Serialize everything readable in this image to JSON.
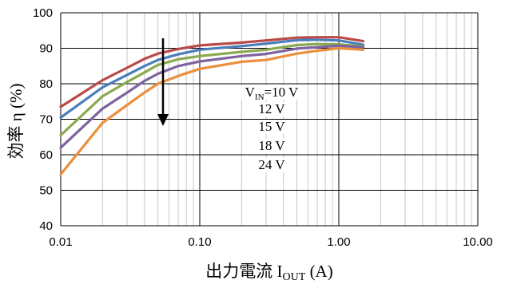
{
  "chart_data": {
    "type": "line",
    "xlabel": "出力電流 I",
    "xlabel_sub": "OUT",
    "xlabel_unit": " (A)",
    "ylabel": "効率 η (%)",
    "xscale": "log",
    "xlim": [
      0.01,
      10
    ],
    "ylim": [
      40,
      100
    ],
    "x_ticks": [
      "0.01",
      "0.10",
      "1.00",
      "10.00"
    ],
    "y_ticks": [
      "40",
      "50",
      "60",
      "70",
      "80",
      "90",
      "100"
    ],
    "grid": true,
    "annotation": "arrow pointing down from the top series to the bottom series",
    "series": [
      {
        "name": "=10 V",
        "label_prefix": "V",
        "label_sub": "IN",
        "color": "#b94a48",
        "x": [
          0.01,
          0.02,
          0.03,
          0.04,
          0.05,
          0.07,
          0.1,
          0.2,
          0.3,
          0.5,
          0.7,
          1.0,
          1.5
        ],
        "y": [
          73.5,
          81,
          84.5,
          87,
          88.5,
          89.8,
          90.8,
          91.6,
          92.2,
          93.0,
          93.1,
          93.1,
          92.0
        ]
      },
      {
        "name": "12 V",
        "label_prefix": "",
        "label_sub": "",
        "color": "#4a7ebb",
        "x": [
          0.01,
          0.02,
          0.03,
          0.04,
          0.05,
          0.07,
          0.1,
          0.2,
          0.3,
          0.5,
          0.7,
          1.0,
          1.5
        ],
        "y": [
          70.5,
          79,
          82.5,
          85,
          86.7,
          88.3,
          89.6,
          90.6,
          91.3,
          92.3,
          92.4,
          92.2,
          91.0
        ]
      },
      {
        "name": "15 V",
        "label_prefix": "",
        "label_sub": "",
        "color": "#8aaa4f",
        "x": [
          0.01,
          0.02,
          0.03,
          0.04,
          0.05,
          0.07,
          0.1,
          0.2,
          0.3,
          0.5,
          0.7,
          1.0,
          1.5
        ],
        "y": [
          65.5,
          76.5,
          80.5,
          83.2,
          85.3,
          86.9,
          87.8,
          89.0,
          89.6,
          90.9,
          91.2,
          91.1,
          90.5
        ]
      },
      {
        "name": "18 V",
        "label_prefix": "",
        "label_sub": "",
        "color": "#7e63a0",
        "x": [
          0.01,
          0.02,
          0.03,
          0.04,
          0.05,
          0.07,
          0.1,
          0.2,
          0.3,
          0.5,
          0.7,
          1.0,
          1.5
        ],
        "y": [
          62,
          73,
          77.5,
          80.8,
          82.8,
          85.0,
          86.3,
          87.8,
          88.4,
          89.9,
          90.3,
          90.7,
          90.3
        ]
      },
      {
        "name": "24 V",
        "label_prefix": "",
        "label_sub": "",
        "color": "#ec8f3c",
        "x": [
          0.01,
          0.02,
          0.03,
          0.04,
          0.05,
          0.07,
          0.1,
          0.2,
          0.3,
          0.5,
          0.7,
          1.0,
          1.5
        ],
        "y": [
          54.5,
          69,
          74,
          77.5,
          80.0,
          82.2,
          84.2,
          86.2,
          86.7,
          88.5,
          89.3,
          90.0,
          89.6
        ]
      }
    ]
  }
}
